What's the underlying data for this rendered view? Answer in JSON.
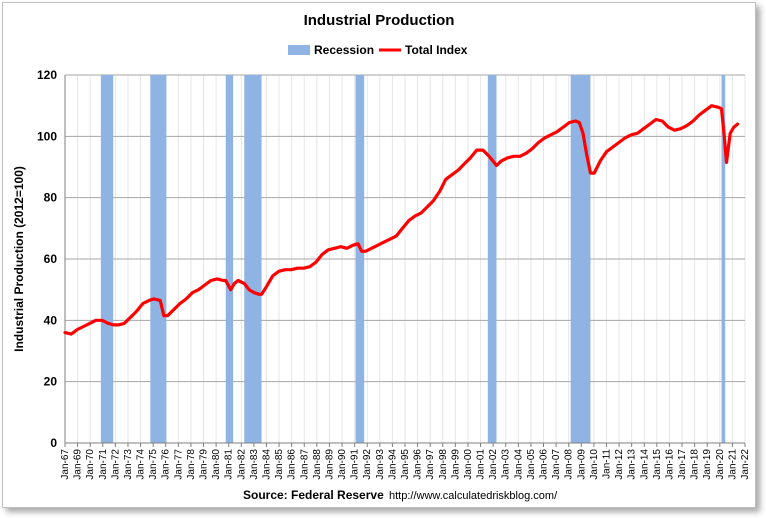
{
  "chart_data": {
    "type": "line",
    "title": "Industrial Production",
    "ylabel": "Industrial Production (2012=100)",
    "xlabel": "",
    "ylim": [
      0,
      120
    ],
    "yticks": [
      0,
      20,
      40,
      60,
      80,
      100,
      120
    ],
    "xlim": [
      1967.0,
      2022.0
    ],
    "grid": true,
    "legend_position": "top-center",
    "source_label": "Source: Federal Reserve",
    "source_url": "http://www.calculatedriskblog.com/",
    "x_tick_labels": [
      "Jan-67",
      "Jan-69",
      "Jan-70",
      "Jan-71",
      "Jan-72",
      "Jan-73",
      "Jan-74",
      "Jan-75",
      "Jan-76",
      "Jan-77",
      "Jan-78",
      "Jan-79",
      "Jan-80",
      "Jan-81",
      "Jan-82",
      "Jan-83",
      "Jan-84",
      "Jan-85",
      "Jan-86",
      "Jan-87",
      "Jan-88",
      "Jan-89",
      "Jan-90",
      "Jan-91",
      "Jan-92",
      "Jan-93",
      "Jan-94",
      "Jan-95",
      "Jan-96",
      "Jan-97",
      "Jan-98",
      "Jan-99",
      "Jan-00",
      "Jan-01",
      "Jan-02",
      "Jan-03",
      "Jan-04",
      "Jan-05",
      "Jan-06",
      "Jan-07",
      "Jan-08",
      "Jan-09",
      "Jan-10",
      "Jan-11",
      "Jan-12",
      "Jan-13",
      "Jan-14",
      "Jan-15",
      "Jan-16",
      "Jan-17",
      "Jan-18",
      "Jan-19",
      "Jan-20",
      "Jan-21",
      "Jan-22"
    ],
    "series": [
      {
        "name": "Total Index",
        "color": "#ff0000",
        "x": [
          1967.0,
          1967.5,
          1968.0,
          1968.5,
          1969.0,
          1969.5,
          1970.0,
          1970.5,
          1970.9,
          1971.3,
          1971.8,
          1972.3,
          1972.8,
          1973.3,
          1973.8,
          1974.2,
          1974.7,
          1975.0,
          1975.3,
          1975.8,
          1976.3,
          1976.8,
          1977.3,
          1977.8,
          1978.3,
          1978.8,
          1979.3,
          1979.8,
          1980.0,
          1980.4,
          1980.7,
          1981.0,
          1981.5,
          1981.9,
          1982.3,
          1982.7,
          1982.9,
          1983.3,
          1983.8,
          1984.3,
          1984.8,
          1985.3,
          1985.8,
          1986.3,
          1986.8,
          1987.3,
          1987.8,
          1988.3,
          1988.8,
          1989.3,
          1989.8,
          1990.3,
          1990.7,
          1991.0,
          1991.3,
          1991.8,
          1992.3,
          1992.8,
          1993.3,
          1993.8,
          1994.3,
          1994.8,
          1995.3,
          1995.8,
          1996.3,
          1996.8,
          1997.3,
          1997.8,
          1998.3,
          1998.8,
          1999.3,
          1999.8,
          2000.3,
          2000.8,
          2001.3,
          2001.8,
          2001.9,
          2002.3,
          2002.8,
          2003.3,
          2003.8,
          2004.3,
          2004.8,
          2005.3,
          2005.8,
          2006.3,
          2006.8,
          2007.3,
          2007.8,
          2008.3,
          2008.6,
          2008.9,
          2009.2,
          2009.5,
          2009.8,
          2010.3,
          2010.8,
          2011.3,
          2011.8,
          2012.3,
          2012.8,
          2013.3,
          2013.8,
          2014.3,
          2014.8,
          2015.3,
          2015.8,
          2016.3,
          2016.8,
          2017.3,
          2017.8,
          2018.3,
          2018.8,
          2019.3,
          2019.8,
          2020.1,
          2020.3,
          2020.5,
          2020.8,
          2021.1,
          2021.4
        ],
        "values": [
          36,
          35.5,
          37,
          38,
          39,
          40,
          40,
          39,
          38.5,
          38.5,
          39,
          41,
          43,
          45.5,
          46.5,
          47,
          46.5,
          41.5,
          41.5,
          43.5,
          45.5,
          47,
          49,
          50,
          51.5,
          53,
          53.5,
          53,
          53,
          50,
          52,
          53,
          52,
          50,
          49,
          48.5,
          48.5,
          51,
          54.5,
          56,
          56.5,
          56.5,
          57,
          57,
          57.5,
          59,
          61.5,
          63,
          63.5,
          64,
          63.5,
          64.5,
          65,
          62.5,
          62.5,
          63.5,
          64.5,
          65.5,
          66.5,
          67.5,
          70,
          72.5,
          74,
          75,
          77,
          79,
          82,
          86,
          87.5,
          89,
          91,
          93,
          95.5,
          95.5,
          93.5,
          91,
          90.5,
          92,
          93,
          93.5,
          93.5,
          94.5,
          96,
          98,
          99.5,
          100.5,
          101.5,
          103,
          104.5,
          105,
          104.5,
          101,
          94,
          88,
          88,
          92,
          95,
          96.5,
          98,
          99.5,
          100.5,
          101,
          102.5,
          104,
          105.5,
          105,
          103,
          102,
          102.5,
          103.5,
          105,
          107,
          108.5,
          110,
          109.5,
          109,
          101,
          91.5,
          101,
          103,
          104
        ]
      }
    ],
    "recessions": [
      {
        "label": "Recession",
        "start": 1969.9,
        "end": 1970.9
      },
      {
        "label": "Recession",
        "start": 1973.9,
        "end": 1975.2
      },
      {
        "label": "Recession",
        "start": 1980.0,
        "end": 1980.6
      },
      {
        "label": "Recession",
        "start": 1981.5,
        "end": 1982.9
      },
      {
        "label": "Recession",
        "start": 1990.5,
        "end": 1991.2
      },
      {
        "label": "Recession",
        "start": 2001.2,
        "end": 2001.9
      },
      {
        "label": "Recession",
        "start": 2007.9,
        "end": 2009.5
      },
      {
        "label": "Recession",
        "start": 2020.1,
        "end": 2020.4
      }
    ],
    "legend": [
      {
        "label": "Recession",
        "color": "#8fb4e3",
        "kind": "bar"
      },
      {
        "label": "Total Index",
        "color": "#ff0000",
        "kind": "line"
      }
    ],
    "recession_color": "#8fb4e3"
  }
}
